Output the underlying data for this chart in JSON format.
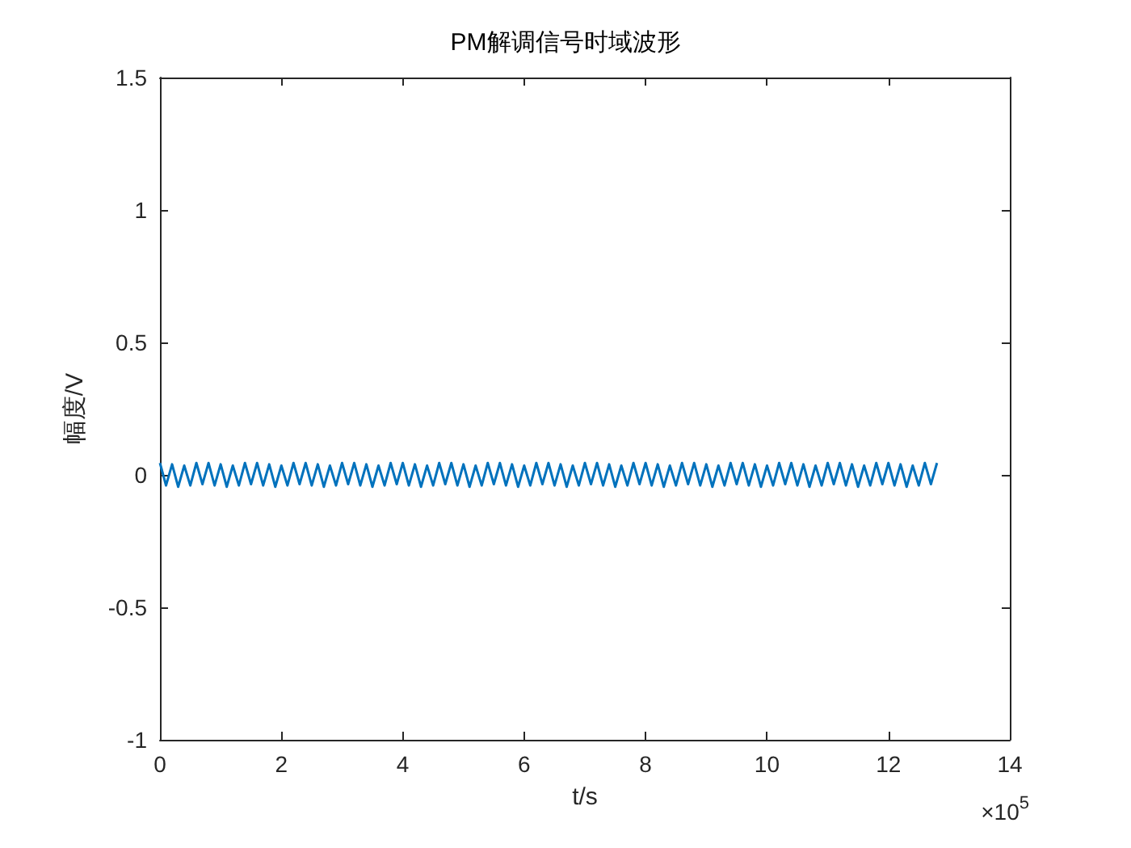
{
  "chart_data": {
    "type": "line",
    "title": "PM解调信号时域波形",
    "xlabel": "t/s",
    "ylabel": "幅度/V",
    "annotations": [
      "×10$^{5}$"
    ],
    "x": [
      0,
      0.1,
      0.2,
      0.3,
      0.4,
      0.5,
      0.6,
      0.7,
      0.8,
      0.9,
      1,
      1.1,
      1.2,
      1.3,
      1.4,
      1.5,
      1.6,
      1.7,
      1.8,
      1.9,
      2,
      2.1,
      2.2,
      2.3,
      2.4,
      2.5,
      2.6,
      2.7,
      2.8,
      2.9,
      3,
      3.1,
      3.2,
      3.3,
      3.4,
      3.5,
      3.6,
      3.7,
      3.8,
      3.9,
      4,
      4.1,
      4.2,
      4.3,
      4.4,
      4.5,
      4.6,
      4.7,
      4.8,
      4.9,
      5,
      5.1,
      5.2,
      5.3,
      5.4,
      5.5,
      5.6,
      5.7,
      5.8,
      5.9,
      6,
      6.1,
      6.2,
      6.3,
      6.4,
      6.5,
      6.6,
      6.7,
      6.8,
      6.9,
      7,
      7.1,
      7.2,
      7.3,
      7.4,
      7.5,
      7.6,
      7.7,
      7.8,
      7.9,
      8,
      8.1,
      8.2,
      8.3,
      8.4,
      8.5,
      8.6,
      8.7,
      8.8,
      8.9,
      9,
      9.1,
      9.2,
      9.3,
      9.4,
      9.5,
      9.6,
      9.7,
      9.8,
      9.9,
      10,
      10.1,
      10.2,
      10.3,
      10.4,
      10.5,
      10.6,
      10.7,
      10.8,
      10.9,
      11,
      11.1,
      11.2,
      11.3,
      11.4,
      11.5,
      11.6,
      11.7,
      11.8,
      11.9,
      12,
      12.1,
      12.2,
      12.3,
      12.4,
      12.5,
      12.6,
      12.7,
      12.8
    ],
    "series": [
      {
        "color": "#0072bd",
        "values": [
          0.045,
          -0.04,
          0.04,
          -0.045,
          0.035,
          -0.04,
          0.045,
          -0.035,
          0.045,
          -0.04,
          0.04,
          -0.045,
          0.035,
          -0.04,
          0.045,
          -0.035,
          0.045,
          -0.04,
          0.04,
          -0.045,
          0.035,
          -0.04,
          0.045,
          -0.035,
          0.045,
          -0.04,
          0.04,
          -0.045,
          0.035,
          -0.04,
          0.045,
          -0.035,
          0.045,
          -0.04,
          0.04,
          -0.045,
          0.035,
          -0.04,
          0.045,
          -0.035,
          0.045,
          -0.04,
          0.04,
          -0.045,
          0.035,
          -0.04,
          0.045,
          -0.035,
          0.045,
          -0.04,
          0.04,
          -0.045,
          0.035,
          -0.04,
          0.045,
          -0.035,
          0.045,
          -0.04,
          0.04,
          -0.045,
          0.035,
          -0.04,
          0.045,
          -0.035,
          0.045,
          -0.04,
          0.04,
          -0.045,
          0.035,
          -0.04,
          0.045,
          -0.035,
          0.045,
          -0.04,
          0.04,
          -0.045,
          0.035,
          -0.04,
          0.045,
          -0.035,
          0.045,
          -0.04,
          0.04,
          -0.045,
          0.035,
          -0.04,
          0.045,
          -0.035,
          0.045,
          -0.04,
          0.04,
          -0.045,
          0.035,
          -0.04,
          0.045,
          -0.035,
          0.045,
          -0.04,
          0.04,
          -0.045,
          0.035,
          -0.04,
          0.045,
          -0.035,
          0.045,
          -0.04,
          0.04,
          -0.045,
          0.035,
          -0.04,
          0.045,
          -0.035,
          0.045,
          -0.04,
          0.04,
          -0.045,
          0.035,
          -0.04,
          0.045,
          -0.035,
          0.045,
          -0.04,
          0.04,
          -0.045,
          0.035,
          -0.04,
          0.045,
          -0.035,
          0.045
        ]
      }
    ],
    "xlim": [
      0,
      14
    ],
    "xticks": [
      0,
      2,
      4,
      6,
      8,
      10,
      12,
      14
    ],
    "ylim": [
      -1,
      1.5
    ],
    "yticks": [
      -1,
      -0.5,
      0,
      0.5,
      1,
      1.5
    ],
    "grid": false,
    "marker": "none",
    "line_style": "solid"
  }
}
